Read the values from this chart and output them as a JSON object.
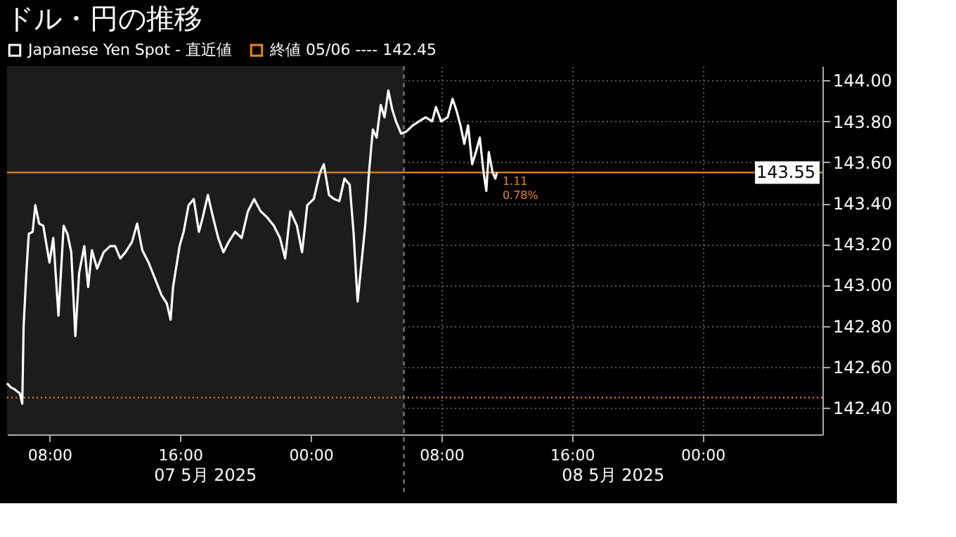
{
  "chart_data": {
    "type": "line",
    "title": "ドル・円の推移",
    "x": [
      "2025-05-07T05:24",
      "2025-05-07T05:38",
      "2025-05-07T05:52",
      "2025-05-07T06:11",
      "2025-05-07T06:20",
      "2025-05-07T06:25",
      "2025-05-07T06:35",
      "2025-05-07T06:44",
      "2025-05-07T06:58",
      "2025-05-07T07:08",
      "2025-05-07T07:22",
      "2025-05-07T07:37",
      "2025-05-07T08:00",
      "2025-05-07T08:14",
      "2025-05-07T08:33",
      "2025-05-07T08:52",
      "2025-05-07T09:06",
      "2025-05-07T09:20",
      "2025-05-07T09:35",
      "2025-05-07T09:49",
      "2025-05-07T10:08",
      "2025-05-07T10:22",
      "2025-05-07T10:36",
      "2025-05-07T10:55",
      "2025-05-07T11:19",
      "2025-05-07T11:43",
      "2025-05-07T12:01",
      "2025-05-07T12:20",
      "2025-05-07T12:39",
      "2025-05-07T13:03",
      "2025-05-07T13:22",
      "2025-05-07T13:41",
      "2025-05-07T14:04",
      "2025-05-07T14:28",
      "2025-05-07T14:52",
      "2025-05-07T15:11",
      "2025-05-07T15:25",
      "2025-05-07T15:34",
      "2025-05-07T15:58",
      "2025-05-07T16:13",
      "2025-05-07T16:31",
      "2025-05-07T16:50",
      "2025-05-07T17:09",
      "2025-05-07T17:23",
      "2025-05-07T17:42",
      "2025-05-07T18:01",
      "2025-05-07T18:20",
      "2025-05-07T18:39",
      "2025-05-07T18:58",
      "2025-05-07T19:22",
      "2025-05-07T19:46",
      "2025-05-07T20:09",
      "2025-05-07T20:32",
      "2025-05-07T20:56",
      "2025-05-07T21:20",
      "2025-05-07T21:44",
      "2025-05-07T22:07",
      "2025-05-07T22:26",
      "2025-05-07T22:45",
      "2025-05-07T23:09",
      "2025-05-07T23:28",
      "2025-05-07T23:47",
      "2025-05-08T00:11",
      "2025-05-08T00:34",
      "2025-05-08T00:48",
      "2025-05-08T01:07",
      "2025-05-08T01:26",
      "2025-05-08T01:45",
      "2025-05-08T02:04",
      "2025-05-08T02:23",
      "2025-05-08T02:37",
      "2025-05-08T02:52",
      "2025-05-08T03:05",
      "2025-05-08T03:20",
      "2025-05-08T03:34",
      "2025-05-08T03:48",
      "2025-05-08T04:02",
      "2025-05-08T04:17",
      "2025-05-08T04:31",
      "2025-05-08T04:45",
      "2025-05-08T04:59",
      "2025-05-08T05:13",
      "2025-05-08T05:32",
      "2025-05-08T05:51",
      "2025-05-08T06:15",
      "2025-05-08T06:38",
      "2025-05-08T07:02",
      "2025-05-08T07:26",
      "2025-05-08T07:40",
      "2025-05-08T07:59",
      "2025-05-08T08:23",
      "2025-05-08T08:41",
      "2025-05-08T08:56",
      "2025-05-08T09:10",
      "2025-05-08T09:24",
      "2025-05-08T09:38",
      "2025-05-08T09:53",
      "2025-05-08T10:07",
      "2025-05-08T10:21",
      "2025-05-08T10:35",
      "2025-05-08T10:45",
      "2025-05-08T10:54",
      "2025-05-08T11:08",
      "2025-05-08T11:18",
      "2025-05-08T11:24"
    ],
    "series": [
      {
        "name": "Japanese Yen Spot - 直近値",
        "color": "#ffffff",
        "values": [
          142.52,
          142.5,
          142.49,
          142.47,
          142.42,
          142.8,
          143.06,
          143.25,
          143.26,
          143.39,
          143.3,
          143.29,
          143.11,
          143.23,
          142.85,
          143.29,
          143.25,
          143.16,
          142.75,
          143.06,
          143.19,
          142.99,
          143.17,
          143.08,
          143.16,
          143.19,
          143.19,
          143.13,
          143.16,
          143.21,
          143.3,
          143.17,
          143.11,
          143.03,
          142.95,
          142.91,
          142.83,
          142.99,
          143.19,
          143.26,
          143.39,
          143.42,
          143.26,
          143.33,
          143.44,
          143.33,
          143.23,
          143.16,
          143.21,
          143.26,
          143.23,
          143.36,
          143.42,
          143.36,
          143.33,
          143.29,
          143.23,
          143.13,
          143.36,
          143.29,
          143.16,
          143.39,
          143.42,
          143.55,
          143.59,
          143.44,
          143.42,
          143.41,
          143.52,
          143.49,
          143.26,
          142.92,
          143.09,
          143.29,
          143.55,
          143.76,
          143.72,
          143.88,
          143.82,
          143.95,
          143.86,
          143.8,
          143.74,
          143.75,
          143.78,
          143.8,
          143.82,
          143.8,
          143.87,
          143.8,
          143.82,
          143.91,
          143.85,
          143.78,
          143.69,
          143.78,
          143.59,
          143.65,
          143.72,
          143.55,
          143.46,
          143.65,
          143.55,
          143.52,
          143.55
        ]
      }
    ],
    "xlim": [
      "2025-05-07T05:24",
      "2025-05-09T07:20"
    ],
    "xticks": [
      {
        "value": "2025-05-07T08:00",
        "label": "08:00"
      },
      {
        "value": "2025-05-07T16:00",
        "label": "16:00"
      },
      {
        "value": "2025-05-08T00:00",
        "label": "00:00"
      },
      {
        "value": "2025-05-08T08:00",
        "label": "08:00"
      },
      {
        "value": "2025-05-08T16:00",
        "label": "16:00"
      },
      {
        "value": "2025-05-09T00:00",
        "label": "00:00"
      }
    ],
    "ylim": [
      142.27,
      144.07
    ],
    "yticks": [
      {
        "value": 142.4,
        "label": "142.40"
      },
      {
        "value": 142.6,
        "label": "142.60"
      },
      {
        "value": 142.8,
        "label": "142.80"
      },
      {
        "value": 143.0,
        "label": "143.00"
      },
      {
        "value": 143.2,
        "label": "143.20"
      },
      {
        "value": 143.4,
        "label": "143.40"
      },
      {
        "value": 143.6,
        "label": "143.60"
      },
      {
        "value": 143.8,
        "label": "143.80"
      },
      {
        "value": 144.0,
        "label": "144.00"
      }
    ],
    "ref_lines": [
      {
        "axis": "y",
        "value": 142.45,
        "label": "終値 05/06 ---- 142.45",
        "color": "#e8871e",
        "line_style": "dotted"
      },
      {
        "axis": "y",
        "value": 143.55,
        "label": "143.55",
        "color": "#e8871e",
        "line_style": "solid"
      },
      {
        "axis": "x",
        "value": "2025-05-08T05:42",
        "color": "#777777",
        "line_style": "dashed"
      }
    ],
    "bands": [
      {
        "axis": "x",
        "from": "2025-05-07T05:24",
        "to": "2025-05-08T05:42",
        "color": "#1c1c1c"
      }
    ],
    "annotations": [
      {
        "text": "1.11",
        "x": "2025-05-08T11:24",
        "y": 143.55
      },
      {
        "text": "0.78%",
        "x": "2025-05-08T11:24",
        "y": 143.55
      },
      "07 5月 2025",
      "08 5月 2025"
    ],
    "grid": true,
    "legend": "top left",
    "marker": "none",
    "line_style": "solid"
  }
}
